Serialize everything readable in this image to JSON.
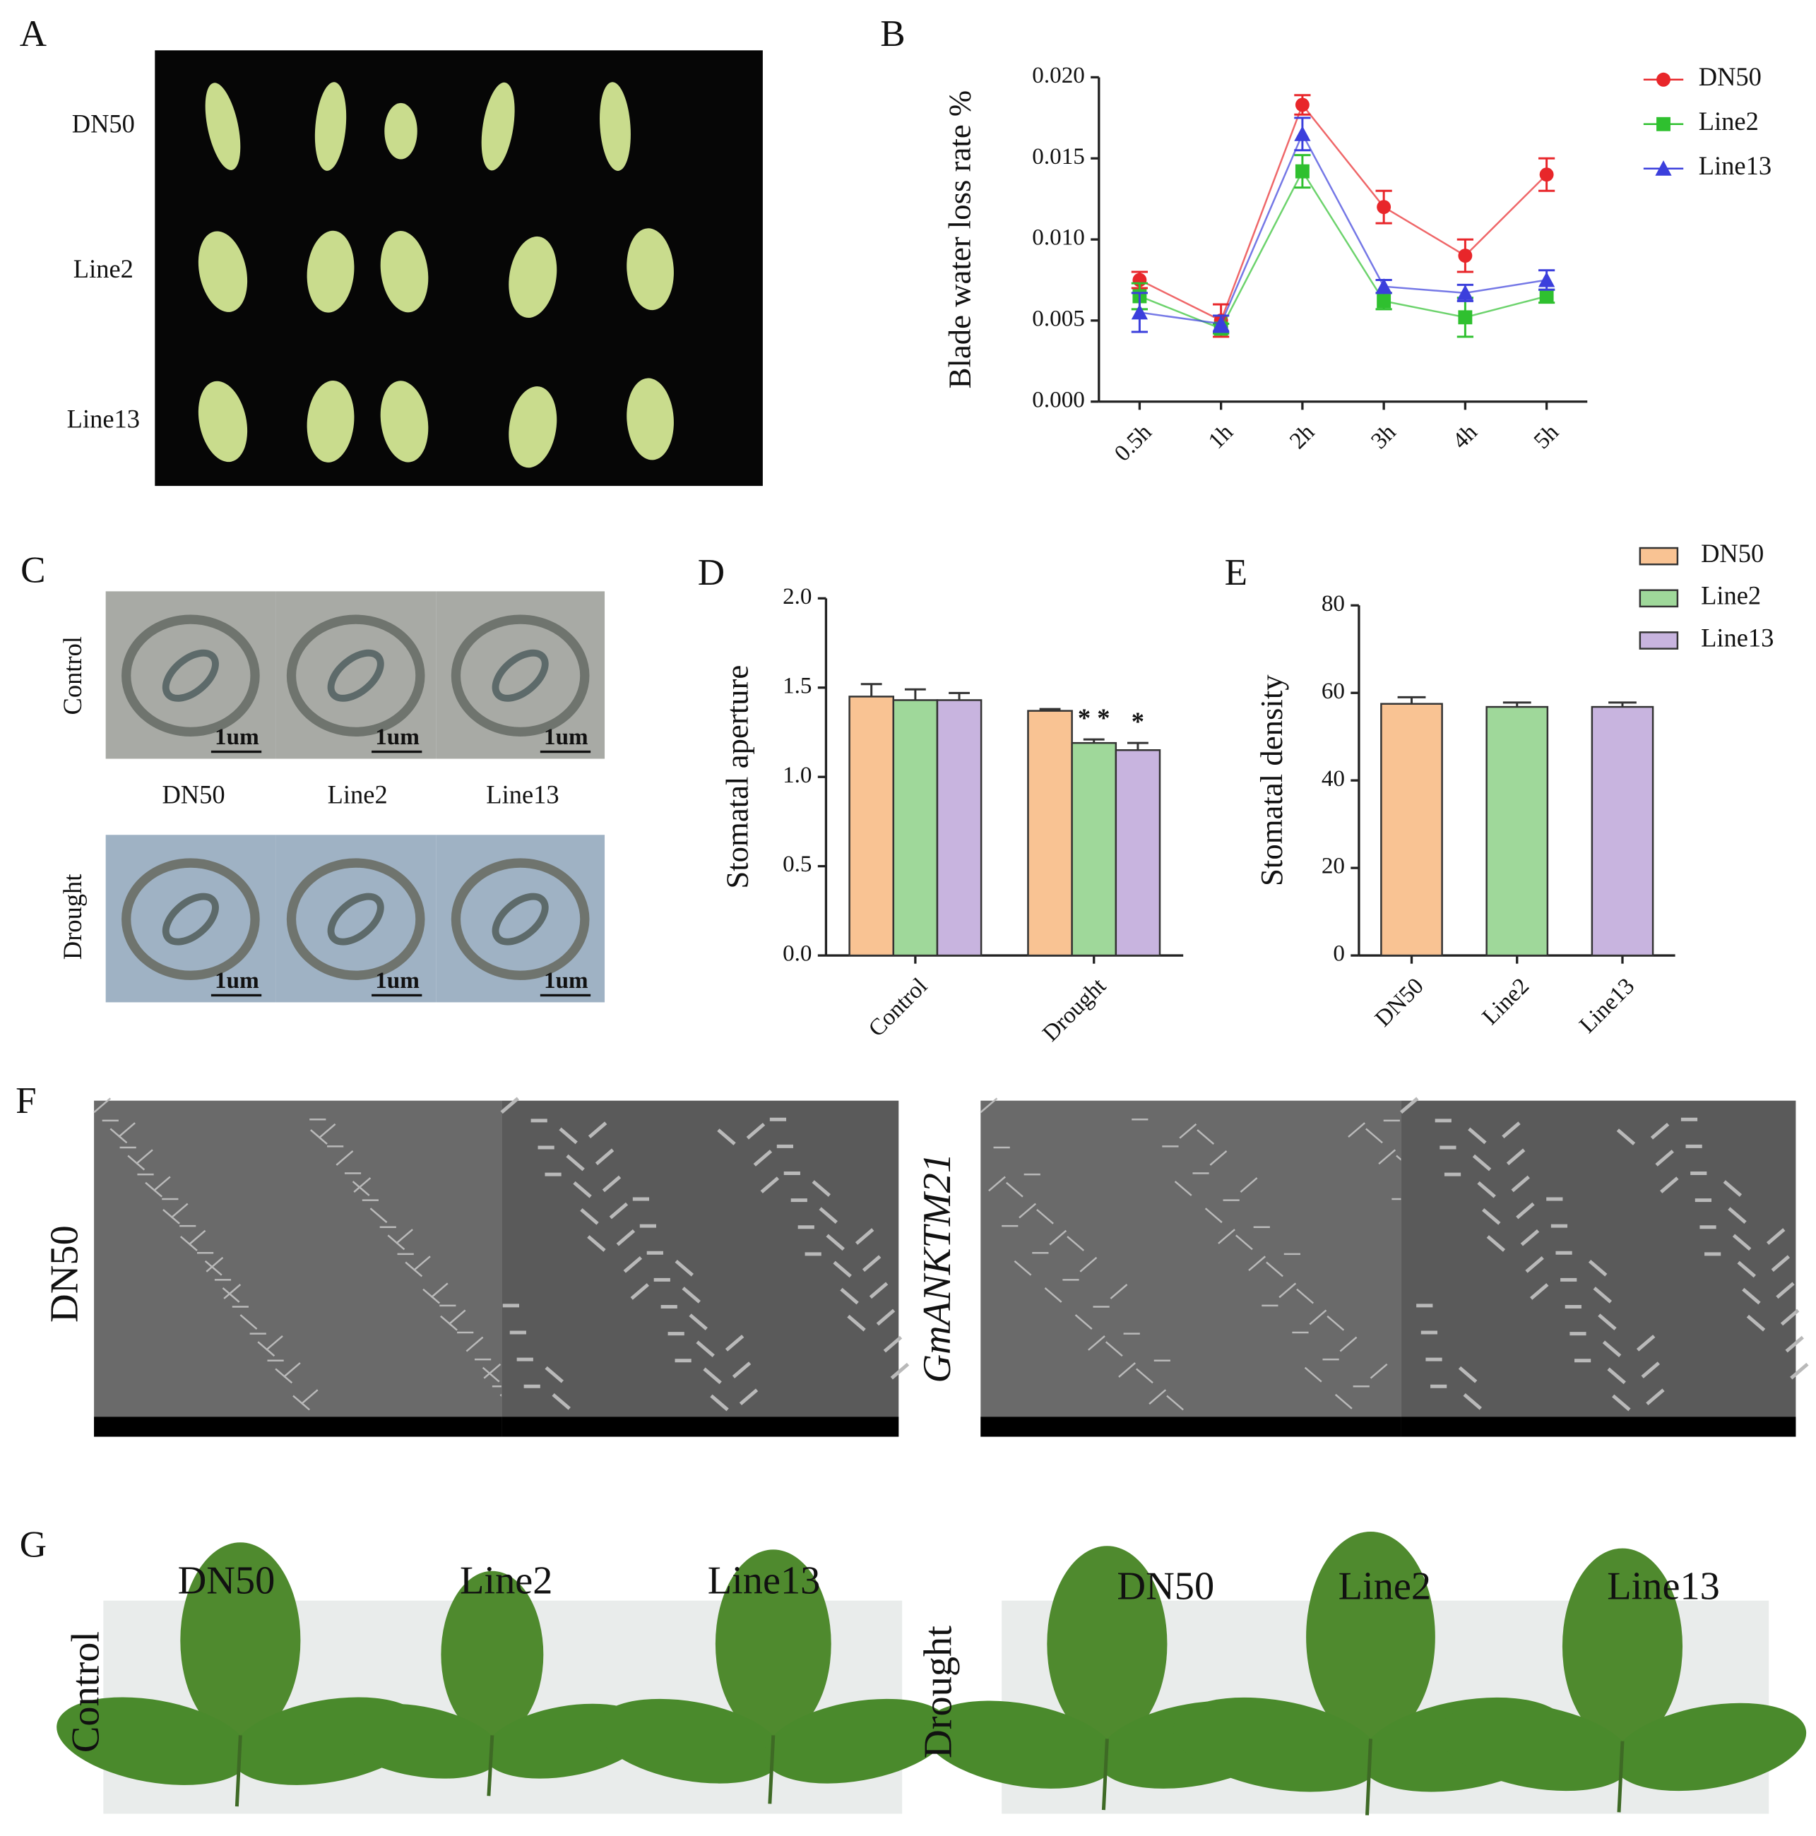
{
  "panel_labels": [
    "A",
    "B",
    "C",
    "D",
    "E",
    "F",
    "G"
  ],
  "panel_a": {
    "rows": [
      "DN50",
      "Line2",
      "Line13"
    ]
  },
  "panel_c": {
    "conditions": [
      "Control",
      "Drought"
    ],
    "genotypes": [
      "DN50",
      "Line2",
      "Line13"
    ],
    "scale_bar": "1um"
  },
  "panel_f": {
    "labels": [
      "DN50",
      "GmANKTM21"
    ]
  },
  "panel_g": {
    "conditions": [
      "Control",
      "Drought"
    ],
    "control_genotypes": [
      "DN50",
      "Line2",
      "Line13"
    ],
    "drought_genotypes": [
      "DN50",
      "Line2",
      "Line13"
    ]
  },
  "chart_data": [
    {
      "type": "line",
      "y_label": "Blade water loss rate %",
      "categories": [
        "0.5h",
        "1h",
        "2h",
        "3h",
        "4h",
        "5h"
      ],
      "ylim": [
        0,
        0.02
      ],
      "yticks": [
        {
          "value": 0,
          "label": "0.000"
        },
        {
          "value": 0.005,
          "label": "0.005"
        },
        {
          "value": 0.01,
          "label": "0.010"
        },
        {
          "value": 0.015,
          "label": "0.015"
        },
        {
          "value": 0.02,
          "label": "0.020"
        }
      ],
      "series": [
        {
          "name": "DN50",
          "color": "#e8262a",
          "marker": "circle",
          "values": [
            0.0075,
            0.005,
            0.0183,
            0.012,
            0.009,
            0.014
          ],
          "errors": [
            0.0005,
            0.001,
            0.0006,
            0.001,
            0.001,
            0.001
          ]
        },
        {
          "name": "Line2",
          "color": "#2fc02f",
          "marker": "square",
          "values": [
            0.0065,
            0.0045,
            0.0142,
            0.0062,
            0.0052,
            0.0065
          ],
          "errors": [
            0.0008,
            0.0003,
            0.001,
            0.0005,
            0.0012,
            0.0004
          ]
        },
        {
          "name": "Line13",
          "color": "#3b3fdc",
          "marker": "triangle",
          "values": [
            0.0055,
            0.0048,
            0.0165,
            0.0071,
            0.0067,
            0.0075
          ],
          "errors": [
            0.0012,
            0.0005,
            0.001,
            0.0004,
            0.0005,
            0.0006
          ]
        }
      ],
      "legend": "top-right"
    },
    {
      "type": "bar",
      "y_label": "Stomatal aperture",
      "categories": [
        "Control",
        "Drought"
      ],
      "ylim": [
        0,
        2
      ],
      "yticks": [
        {
          "value": 0,
          "label": "0.0"
        },
        0.5,
        {
          "value": 1,
          "label": "1.0"
        },
        1.5,
        {
          "value": 2,
          "label": "2.0"
        }
      ],
      "series": [
        {
          "name": "DN50",
          "color": "#f9c393",
          "values": [
            1.45,
            1.37
          ],
          "errors": [
            0.07,
            0.01
          ]
        },
        {
          "name": "Line2",
          "color": "#9fd89a",
          "values": [
            1.43,
            1.19
          ],
          "errors": [
            0.06,
            0.02
          ]
        },
        {
          "name": "Line13",
          "color": "#c8b4df",
          "values": [
            1.43,
            1.15
          ],
          "errors": [
            0.04,
            0.04
          ]
        }
      ],
      "annotations": [
        "* *",
        "*"
      ],
      "legend": "top-right"
    },
    {
      "type": "bar_single",
      "y_label": "Stomatal density",
      "categories": [
        "DN50",
        "Line2",
        "Line13"
      ],
      "colors": [
        "#f9c393",
        "#9fd89a",
        "#c8b4df"
      ],
      "values": [
        57.5,
        56.8,
        56.8
      ],
      "errors": [
        1.5,
        1,
        1
      ],
      "ylim": [
        0,
        80
      ],
      "yticks": [
        0,
        20,
        40,
        60,
        80
      ]
    }
  ]
}
